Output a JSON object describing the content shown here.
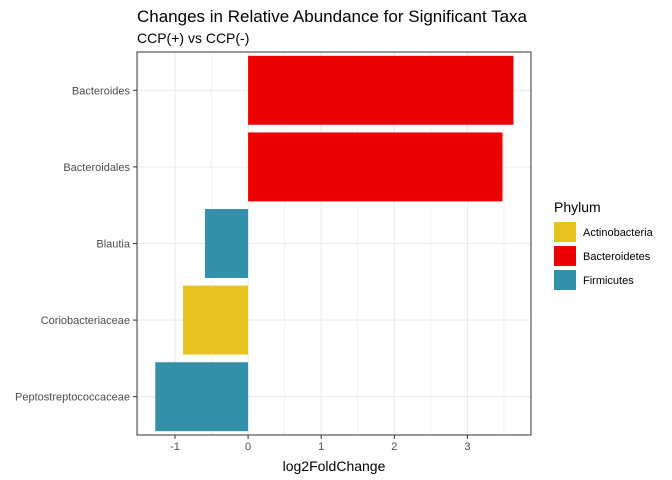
{
  "chart_data": {
    "type": "bar",
    "orientation": "horizontal",
    "title": "Changes in Relative Abundance for Significant Taxa",
    "subtitle": "CCP(+) vs CCP(-)",
    "xlabel": "log2FoldChange",
    "ylabel": "",
    "xlim": [
      -1.52,
      3.87
    ],
    "xticks": [
      -1,
      0,
      1,
      2,
      3
    ],
    "grid": true,
    "legend_position": "right",
    "legend_title": "Phylum",
    "legend": [
      {
        "label": "Actinobacteria",
        "color": "#E7C320"
      },
      {
        "label": "Bacteroidetes",
        "color": "#EE0000"
      },
      {
        "label": "Firmicutes",
        "color": "#348FA9"
      }
    ],
    "categories": [
      "Bacteroides",
      "Bacteroidales",
      "Blautia",
      "Coriobacteriaceae",
      "Peptostreptococcaceae"
    ],
    "values": [
      3.63,
      3.48,
      -0.59,
      -0.89,
      -1.27
    ],
    "phylum": [
      "Bacteroidetes",
      "Bacteroidetes",
      "Firmicutes",
      "Actinobacteria",
      "Firmicutes"
    ]
  }
}
